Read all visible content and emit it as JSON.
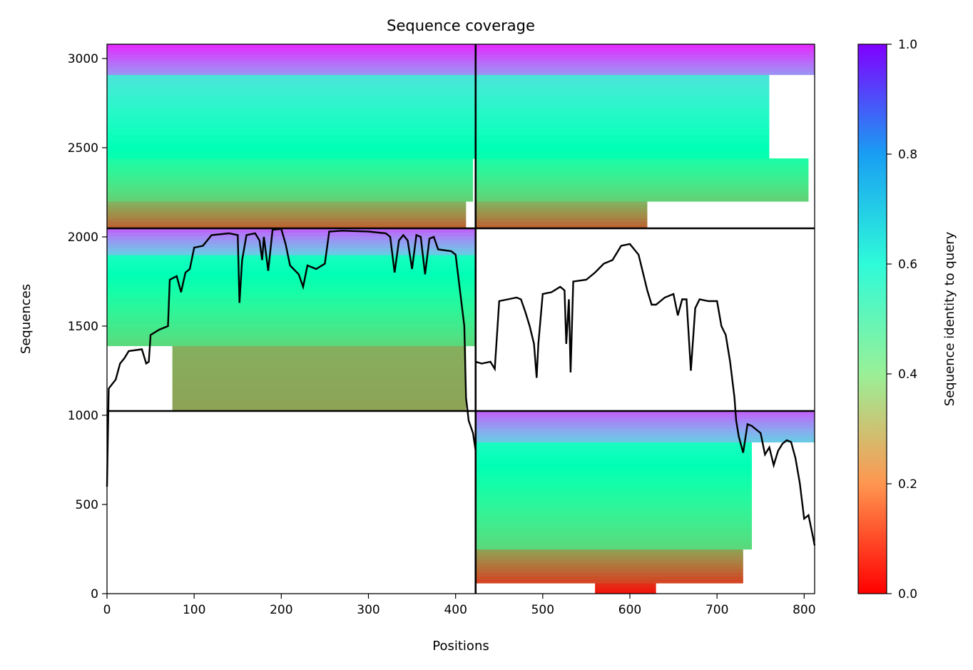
{
  "chart_data": {
    "type": "heatmap",
    "title": "Sequence coverage",
    "xlabel": "Positions",
    "ylabel": "Sequences",
    "xlim": [
      0,
      812
    ],
    "ylim": [
      0,
      3080
    ],
    "x_ticks": [
      "0",
      "100",
      "200",
      "300",
      "400",
      "500",
      "600",
      "700",
      "800"
    ],
    "x_tick_values": [
      0,
      100,
      200,
      300,
      400,
      500,
      600,
      700,
      800
    ],
    "y_ticks": [
      "0",
      "500",
      "1000",
      "1500",
      "2000",
      "2500",
      "3000"
    ],
    "y_tick_values": [
      0,
      500,
      1000,
      1500,
      2000,
      2500,
      3000
    ],
    "colorbar": {
      "label": "Sequence identity to query",
      "range": [
        0,
        1
      ],
      "ticks": [
        "0.0",
        "0.2",
        "0.4",
        "0.6",
        "0.8",
        "1.0"
      ],
      "tick_values": [
        0,
        0.2,
        0.4,
        0.6,
        0.8,
        1.0
      ],
      "colormap": "rainbow_r"
    },
    "chain_boundary_x": 423,
    "block_boundaries_y": [
      1024,
      2048
    ],
    "blocks": [
      {
        "x": [
          0,
          423
        ],
        "y": [
          2048,
          3080
        ],
        "segments": [
          {
            "y": [
              2048,
              2200
            ],
            "id": [
              0.12,
              0.25
            ],
            "x": [
              0,
              412
            ]
          },
          {
            "y": [
              2200,
              2440
            ],
            "id": [
              0.3,
              0.45
            ],
            "x": [
              0,
              420
            ]
          },
          {
            "y": [
              2440,
              2910
            ],
            "id": [
              0.48,
              0.65
            ],
            "x": [
              0,
              423
            ]
          },
          {
            "y": [
              2910,
              3080
            ],
            "id": [
              0.8,
              0.95
            ],
            "x": [
              0,
              423
            ]
          }
        ]
      },
      {
        "x": [
          423,
          812
        ],
        "y": [
          2048,
          3080
        ],
        "segments": [
          {
            "y": [
              2048,
              2200
            ],
            "id": [
              0.12,
              0.25
            ],
            "x": [
              423,
              620
            ]
          },
          {
            "y": [
              2200,
              2440
            ],
            "id": [
              0.3,
              0.45
            ],
            "x": [
              423,
              805
            ]
          },
          {
            "y": [
              2440,
              2910
            ],
            "id": [
              0.48,
              0.65
            ],
            "x": [
              423,
              760
            ]
          },
          {
            "y": [
              2910,
              3080
            ],
            "id": [
              0.8,
              0.95
            ],
            "x": [
              423,
              812
            ]
          }
        ]
      },
      {
        "x": [
          0,
          423
        ],
        "y": [
          1024,
          2048
        ],
        "segments": [
          {
            "y": [
              1024,
              1390
            ],
            "id": [
              0.22,
              0.24
            ],
            "x": [
              75,
              412
            ]
          },
          {
            "y": [
              1390,
              1900
            ],
            "id": [
              0.32,
              0.55
            ],
            "x": [
              0,
              423
            ]
          },
          {
            "y": [
              1900,
              2048
            ],
            "id": [
              0.7,
              0.88
            ],
            "x": [
              0,
              423
            ]
          }
        ]
      },
      {
        "x": [
          423,
          812
        ],
        "y": [
          0,
          1024
        ],
        "segments": [
          {
            "y": [
              0,
              60
            ],
            "id": [
              0.02,
              0.06
            ],
            "x": [
              560,
              630
            ]
          },
          {
            "y": [
              60,
              250
            ],
            "id": [
              0.08,
              0.22
            ],
            "x": [
              423,
              730
            ]
          },
          {
            "y": [
              250,
              850
            ],
            "id": [
              0.32,
              0.55
            ],
            "x": [
              423,
              740
            ]
          },
          {
            "y": [
              850,
              1024
            ],
            "id": [
              0.7,
              0.88
            ],
            "x": [
              423,
              812
            ]
          }
        ]
      }
    ],
    "coverage_line": {
      "name": "",
      "points": [
        [
          0,
          600
        ],
        [
          2,
          1150
        ],
        [
          10,
          1200
        ],
        [
          15,
          1290
        ],
        [
          20,
          1320
        ],
        [
          25,
          1360
        ],
        [
          40,
          1370
        ],
        [
          45,
          1290
        ],
        [
          48,
          1300
        ],
        [
          50,
          1450
        ],
        [
          60,
          1480
        ],
        [
          70,
          1500
        ],
        [
          72,
          1760
        ],
        [
          80,
          1780
        ],
        [
          85,
          1690
        ],
        [
          90,
          1800
        ],
        [
          95,
          1820
        ],
        [
          100,
          1940
        ],
        [
          110,
          1950
        ],
        [
          120,
          2010
        ],
        [
          140,
          2020
        ],
        [
          150,
          2010
        ],
        [
          152,
          1630
        ],
        [
          155,
          1870
        ],
        [
          160,
          2010
        ],
        [
          170,
          2020
        ],
        [
          175,
          1980
        ],
        [
          178,
          1870
        ],
        [
          180,
          2000
        ],
        [
          185,
          1810
        ],
        [
          190,
          2040
        ],
        [
          200,
          2045
        ],
        [
          205,
          1960
        ],
        [
          210,
          1840
        ],
        [
          220,
          1790
        ],
        [
          225,
          1720
        ],
        [
          230,
          1840
        ],
        [
          240,
          1820
        ],
        [
          250,
          1850
        ],
        [
          255,
          2030
        ],
        [
          270,
          2035
        ],
        [
          300,
          2030
        ],
        [
          320,
          2020
        ],
        [
          325,
          2000
        ],
        [
          330,
          1800
        ],
        [
          335,
          1980
        ],
        [
          340,
          2010
        ],
        [
          345,
          1980
        ],
        [
          350,
          1820
        ],
        [
          355,
          2010
        ],
        [
          360,
          2000
        ],
        [
          365,
          1790
        ],
        [
          370,
          1990
        ],
        [
          375,
          2000
        ],
        [
          380,
          1930
        ],
        [
          395,
          1920
        ],
        [
          400,
          1900
        ],
        [
          405,
          1700
        ],
        [
          410,
          1500
        ],
        [
          412,
          1100
        ],
        [
          415,
          970
        ],
        [
          420,
          900
        ],
        [
          423,
          800
        ],
        [
          423,
          1300
        ],
        [
          430,
          1290
        ],
        [
          440,
          1300
        ],
        [
          445,
          1260
        ],
        [
          450,
          1640
        ],
        [
          460,
          1650
        ],
        [
          470,
          1660
        ],
        [
          475,
          1650
        ],
        [
          480,
          1580
        ],
        [
          485,
          1500
        ],
        [
          490,
          1400
        ],
        [
          493,
          1210
        ],
        [
          495,
          1400
        ],
        [
          500,
          1680
        ],
        [
          510,
          1690
        ],
        [
          520,
          1720
        ],
        [
          525,
          1700
        ],
        [
          527,
          1400
        ],
        [
          530,
          1650
        ],
        [
          532,
          1240
        ],
        [
          535,
          1750
        ],
        [
          550,
          1760
        ],
        [
          560,
          1800
        ],
        [
          570,
          1850
        ],
        [
          580,
          1870
        ],
        [
          590,
          1950
        ],
        [
          600,
          1960
        ],
        [
          610,
          1900
        ],
        [
          620,
          1700
        ],
        [
          625,
          1620
        ],
        [
          630,
          1620
        ],
        [
          640,
          1660
        ],
        [
          650,
          1680
        ],
        [
          655,
          1560
        ],
        [
          660,
          1650
        ],
        [
          665,
          1650
        ],
        [
          670,
          1250
        ],
        [
          675,
          1600
        ],
        [
          680,
          1650
        ],
        [
          690,
          1640
        ],
        [
          700,
          1640
        ],
        [
          705,
          1500
        ],
        [
          710,
          1450
        ],
        [
          715,
          1300
        ],
        [
          720,
          1100
        ],
        [
          722,
          970
        ],
        [
          725,
          880
        ],
        [
          730,
          790
        ],
        [
          735,
          950
        ],
        [
          740,
          940
        ],
        [
          745,
          920
        ],
        [
          750,
          900
        ],
        [
          755,
          780
        ],
        [
          760,
          820
        ],
        [
          765,
          720
        ],
        [
          770,
          800
        ],
        [
          775,
          840
        ],
        [
          780,
          860
        ],
        [
          785,
          850
        ],
        [
          790,
          760
        ],
        [
          795,
          620
        ],
        [
          800,
          420
        ],
        [
          805,
          440
        ],
        [
          810,
          320
        ],
        [
          812,
          270
        ]
      ]
    }
  }
}
